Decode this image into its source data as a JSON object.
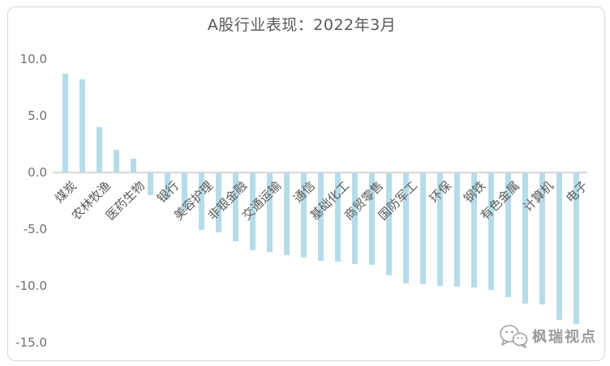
{
  "chart_data": {
    "type": "bar",
    "title": "A股行业表现：2022年3月",
    "categories": [
      "煤炭",
      "",
      "农林牧渔",
      "",
      "医药生物",
      "",
      "银行",
      "",
      "美容护理",
      "",
      "非银金融",
      "",
      "交通运输",
      "",
      "通信",
      "",
      "基础化工",
      "",
      "商贸零售",
      "",
      "国防军工",
      "",
      "环保",
      "",
      "钢铁",
      "",
      "有色金属",
      "",
      "计算机",
      "",
      "电子"
    ],
    "values": [
      8.7,
      8.2,
      4.0,
      2.0,
      1.2,
      -1.9,
      -2.3,
      -3.3,
      -5.0,
      -5.2,
      -6.0,
      -6.8,
      -6.9,
      -7.2,
      -7.4,
      -7.7,
      -7.8,
      -8.0,
      -8.1,
      -9.0,
      -9.7,
      -9.8,
      -9.9,
      -10.0,
      -10.1,
      -10.3,
      -10.9,
      -11.5,
      -11.6,
      -12.9,
      -13.3
    ],
    "ytick_labels": [
      "10.0",
      "5.0",
      "0.0",
      "-5.0",
      "-10.0",
      "-15.0"
    ],
    "yticks": [
      10,
      5,
      0,
      -5,
      -10,
      -15
    ],
    "ylim": [
      -15,
      10
    ],
    "xlabel": "",
    "ylabel": "",
    "grid": false,
    "legend": false,
    "bar_color": "#b6dce9",
    "axis_color": "#d8d8d8",
    "text_color": "#595959"
  },
  "watermark": {
    "text": "枫瑞视点",
    "icon": "chat-bubbles-logo-icon",
    "color": "#9b9b9b"
  }
}
